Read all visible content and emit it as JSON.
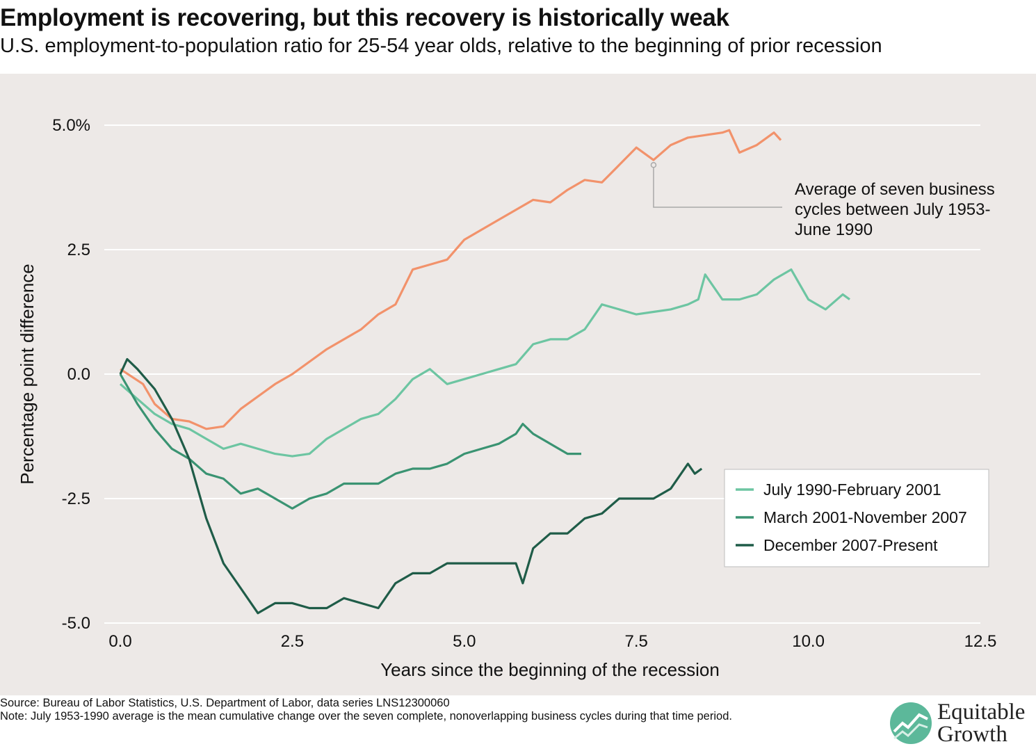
{
  "header": {
    "title": "Employment is recovering, but this recovery is historically weak",
    "subtitle": "U.S. employment-to-population ratio for 25-54 year olds, relative to the beginning of prior recession"
  },
  "footer": {
    "source": "Source: Bureau of Labor Statistics, U.S. Department of Labor, data series LNS12300060",
    "note": "Note: July 1953-1990 average is the mean cumulative change over the seven complete, nonoverlapping business cycles during that time period."
  },
  "logo": {
    "line1": "Equitable",
    "line2": "Growth"
  },
  "chart_data": {
    "type": "line",
    "xlabel": "Years since the beginning of the recession",
    "ylabel": "Percentage point difference",
    "xlim": [
      0,
      12.5
    ],
    "ylim": [
      -5,
      5
    ],
    "x_ticks": [
      0,
      2.5,
      5,
      7.5,
      10,
      12.5
    ],
    "x_tick_labels": [
      "0.0",
      "2.5",
      "5.0",
      "7.5",
      "10.0",
      "12.5"
    ],
    "y_ticks": [
      5,
      2.5,
      0,
      -2.5,
      -5
    ],
    "y_tick_labels": [
      "5.0%",
      "2.5",
      "0.0",
      "-2.5",
      "-5.0"
    ],
    "grid": "horizontal",
    "legend_position": "bottom-right",
    "annotation": {
      "lines": [
        "Average of seven business",
        "cycles between July 1953-",
        "June 1990"
      ],
      "target_x": 7.75,
      "target_y": 4.2
    },
    "series": [
      {
        "label": "Average of seven business cycles between July 1953-June 1990",
        "color": "#f2926b",
        "in_legend": false,
        "x": [
          0,
          0.33,
          0.5,
          0.75,
          1,
          1.25,
          1.5,
          1.75,
          2,
          2.25,
          2.5,
          3,
          3.5,
          3.75,
          4,
          4.25,
          4.5,
          4.75,
          5,
          5.25,
          5.5,
          5.75,
          6,
          6.25,
          6.5,
          6.75,
          7,
          7.25,
          7.5,
          7.75,
          8,
          8.25,
          8.5,
          8.75,
          8.85,
          9,
          9.25,
          9.5,
          9.6
        ],
        "y": [
          0.1,
          -0.2,
          -0.6,
          -0.9,
          -0.95,
          -1.1,
          -1.05,
          -0.7,
          -0.45,
          -0.2,
          0.0,
          0.5,
          0.9,
          1.2,
          1.4,
          2.1,
          2.2,
          2.3,
          2.7,
          2.9,
          3.1,
          3.3,
          3.5,
          3.45,
          3.7,
          3.9,
          3.85,
          4.2,
          4.55,
          4.3,
          4.6,
          4.75,
          4.8,
          4.85,
          4.9,
          4.45,
          4.6,
          4.85,
          4.7
        ]
      },
      {
        "label": "July 1990-February 2001",
        "color": "#6dc5a2",
        "in_legend": true,
        "x": [
          0,
          0.25,
          0.5,
          0.75,
          1,
          1.25,
          1.5,
          1.75,
          2,
          2.25,
          2.5,
          2.75,
          3,
          3.25,
          3.5,
          3.75,
          4,
          4.25,
          4.5,
          4.75,
          5,
          5.25,
          5.5,
          5.75,
          6,
          6.25,
          6.5,
          6.75,
          7,
          7.25,
          7.5,
          7.75,
          8,
          8.25,
          8.4,
          8.5,
          8.75,
          9,
          9.25,
          9.5,
          9.75,
          10,
          10.25,
          10.5,
          10.6
        ],
        "y": [
          -0.2,
          -0.5,
          -0.8,
          -1.0,
          -1.1,
          -1.3,
          -1.5,
          -1.4,
          -1.5,
          -1.6,
          -1.65,
          -1.6,
          -1.3,
          -1.1,
          -0.9,
          -0.8,
          -0.5,
          -0.1,
          0.1,
          -0.2,
          -0.1,
          0.0,
          0.1,
          0.2,
          0.6,
          0.7,
          0.7,
          0.9,
          1.4,
          1.3,
          1.2,
          1.25,
          1.3,
          1.4,
          1.5,
          2.0,
          1.5,
          1.5,
          1.6,
          1.9,
          2.1,
          1.5,
          1.3,
          1.6,
          1.5
        ]
      },
      {
        "label": "March 2001-November 2007",
        "color": "#3a9372",
        "in_legend": true,
        "x": [
          0,
          0.25,
          0.5,
          0.75,
          1,
          1.25,
          1.5,
          1.75,
          2,
          2.25,
          2.5,
          2.75,
          3,
          3.25,
          3.5,
          3.75,
          4,
          4.25,
          4.5,
          4.75,
          5,
          5.25,
          5.5,
          5.75,
          5.85,
          6,
          6.25,
          6.5,
          6.7
        ],
        "y": [
          0.0,
          -0.6,
          -1.1,
          -1.5,
          -1.7,
          -2.0,
          -2.1,
          -2.4,
          -2.3,
          -2.5,
          -2.7,
          -2.5,
          -2.4,
          -2.2,
          -2.2,
          -2.2,
          -2.0,
          -1.9,
          -1.9,
          -1.8,
          -1.6,
          -1.5,
          -1.4,
          -1.2,
          -1.0,
          -1.2,
          -1.4,
          -1.6,
          -1.6
        ]
      },
      {
        "label": "December 2007-Present",
        "color": "#1f5c48",
        "in_legend": true,
        "x": [
          0,
          0.1,
          0.25,
          0.5,
          0.75,
          1,
          1.25,
          1.5,
          1.75,
          2,
          2.25,
          2.5,
          2.75,
          3,
          3.25,
          3.5,
          3.75,
          4,
          4.25,
          4.5,
          4.75,
          5,
          5.25,
          5.5,
          5.75,
          5.85,
          6,
          6.25,
          6.5,
          6.75,
          7,
          7.25,
          7.5,
          7.75,
          8,
          8.25,
          8.35,
          8.45
        ],
        "y": [
          0.0,
          0.3,
          0.1,
          -0.3,
          -0.9,
          -1.7,
          -2.9,
          -3.8,
          -4.3,
          -4.8,
          -4.6,
          -4.6,
          -4.7,
          -4.7,
          -4.5,
          -4.6,
          -4.7,
          -4.2,
          -4.0,
          -4.0,
          -3.8,
          -3.8,
          -3.8,
          -3.8,
          -3.8,
          -4.2,
          -3.5,
          -3.2,
          -3.2,
          -2.9,
          -2.8,
          -2.5,
          -2.5,
          -2.5,
          -2.3,
          -1.8,
          -2.0,
          -1.9
        ]
      }
    ]
  }
}
